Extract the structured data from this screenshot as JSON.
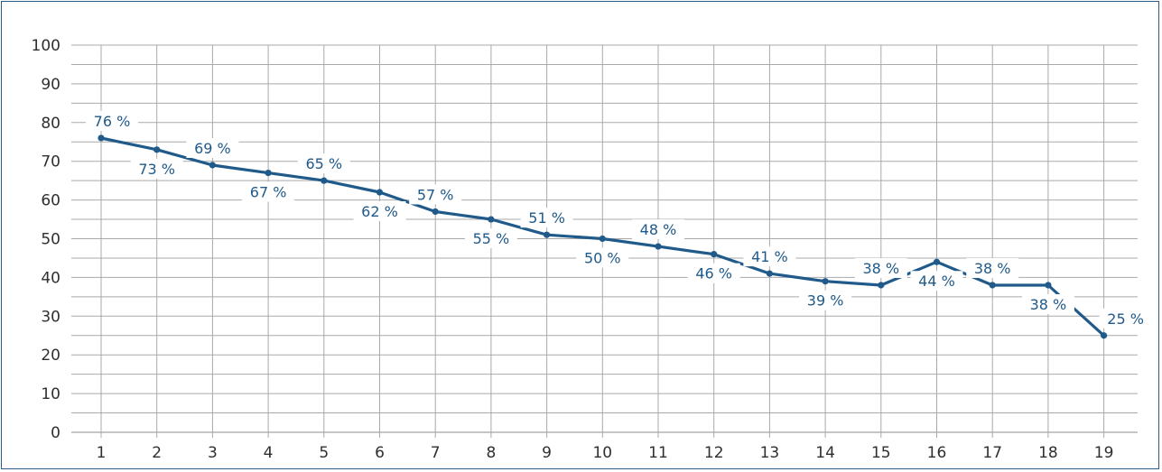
{
  "chart_data": {
    "type": "line",
    "title": "",
    "xlabel": "",
    "ylabel": "",
    "x": [
      1,
      2,
      3,
      4,
      5,
      6,
      7,
      8,
      9,
      10,
      11,
      12,
      13,
      14,
      15,
      16,
      17,
      18,
      19
    ],
    "series": [
      {
        "values": [
          76,
          73,
          69,
          67,
          65,
          62,
          57,
          55,
          51,
          50,
          48,
          46,
          41,
          39,
          38,
          44,
          38,
          38,
          25
        ],
        "labels": [
          "76 %",
          "73 %",
          "69 %",
          "67 %",
          "65 %",
          "62 %",
          "57 %",
          "55 %",
          "51 %",
          "50 %",
          "48 %",
          "46 %",
          "41 %",
          "39 %",
          "38 %",
          "44 %",
          "38 %",
          "38 %",
          "25 %"
        ],
        "label_positions": [
          "above",
          "below",
          "above",
          "below",
          "above",
          "below",
          "above",
          "below",
          "above",
          "below",
          "above",
          "below",
          "above",
          "below",
          "above",
          "below",
          "above",
          "below",
          "above"
        ],
        "color": "#1f5a8a"
      }
    ],
    "ylim": [
      0,
      100
    ],
    "yticks": [
      0,
      10,
      20,
      30,
      40,
      50,
      60,
      70,
      80,
      90,
      100
    ],
    "xticks": [
      "1",
      "2",
      "3",
      "4",
      "5",
      "6",
      "7",
      "8",
      "9",
      "10",
      "11",
      "12",
      "13",
      "14",
      "15",
      "16",
      "17",
      "18",
      "19"
    ],
    "grid": true,
    "legend": "none"
  }
}
